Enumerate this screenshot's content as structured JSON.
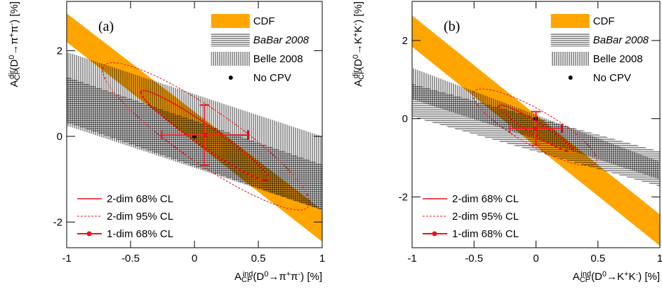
{
  "chart_data": [
    {
      "type": "band",
      "panel_label": "(a)",
      "xlabel": [
        {
          "text": "A"
        },
        {
          "text": "CP",
          "pos": "sub"
        },
        {
          "text": "ind",
          "pos": "sup"
        },
        {
          "text": "(D"
        },
        {
          "text": "0",
          "pos": "sup"
        },
        {
          "text": "→π"
        },
        {
          "text": "+",
          "pos": "sup"
        },
        {
          "text": "π"
        },
        {
          "text": "-",
          "pos": "sup"
        },
        {
          "text": ") [%]"
        }
      ],
      "ylabel": [
        {
          "text": "A"
        },
        {
          "text": "CP",
          "pos": "sub"
        },
        {
          "text": "dir",
          "pos": "sup"
        },
        {
          "text": "(D"
        },
        {
          "text": "0",
          "pos": "sup"
        },
        {
          "text": "→π"
        },
        {
          "text": "+",
          "pos": "sup"
        },
        {
          "text": "π"
        },
        {
          "text": "-",
          "pos": "sup"
        },
        {
          "text": ") [%]"
        }
      ],
      "xlim": [
        -1,
        1
      ],
      "ylim": [
        -2.6,
        3.15
      ],
      "xticks": [
        -1,
        -0.5,
        0,
        0.5,
        1
      ],
      "yticks": [
        -2,
        0,
        2
      ],
      "bands": [
        {
          "name": "CDF",
          "fill": "solid",
          "color": "#ffa500",
          "x": [
            -1,
            1
          ],
          "lower": [
            2.2,
            -2.46
          ],
          "upper": [
            2.87,
            -1.72
          ]
        },
        {
          "name": "BaBar 2008",
          "fill": "hlines",
          "color": "#000000",
          "x": [
            -1,
            1
          ],
          "lower": [
            0.33,
            -1.72
          ],
          "upper": [
            1.39,
            -0.66
          ]
        },
        {
          "name": "Belle 2008",
          "fill": "vlines",
          "color": "#000000",
          "x": [
            -1,
            1
          ],
          "lower": [
            0.25,
            -1.72
          ],
          "upper": [
            1.97,
            0
          ]
        }
      ],
      "reference": {
        "name": "No CPV",
        "x": 0,
        "y": 0,
        "color": "#000000"
      },
      "contours": [
        {
          "name": "2-dim 68% CL",
          "style": "solid",
          "color": "#e8141c",
          "cx": 0.08,
          "cy": 0.02,
          "sx": 0.5,
          "sy": 1.05,
          "rho": -0.96
        },
        {
          "name": "2-dim 95% CL",
          "style": "dashed",
          "color": "#e8141c",
          "cx": 0.09,
          "cy": 0,
          "sx": 0.81,
          "sy": 1.72,
          "rho": -0.9
        }
      ],
      "measurement": {
        "name": "1-dim 68% CL",
        "color": "#e8141c",
        "x": 0.08,
        "y": 0.03,
        "xerr": 0.34,
        "yerr": 0.7
      }
    },
    {
      "type": "band",
      "panel_label": "(b)",
      "xlabel": [
        {
          "text": "A"
        },
        {
          "text": "CP",
          "pos": "sub"
        },
        {
          "text": "ind",
          "pos": "sup"
        },
        {
          "text": "(D"
        },
        {
          "text": "0",
          "pos": "sup"
        },
        {
          "text": "→K"
        },
        {
          "text": "+",
          "pos": "sup"
        },
        {
          "text": "K"
        },
        {
          "text": "-",
          "pos": "sup"
        },
        {
          "text": ") [%]"
        }
      ],
      "ylabel": [
        {
          "text": "A"
        },
        {
          "text": "CP",
          "pos": "sub"
        },
        {
          "text": "dir",
          "pos": "sup"
        },
        {
          "text": "(D"
        },
        {
          "text": "0",
          "pos": "sup"
        },
        {
          "text": "→K"
        },
        {
          "text": "+",
          "pos": "sup"
        },
        {
          "text": "K"
        },
        {
          "text": "-",
          "pos": "sup"
        },
        {
          "text": ") [%]"
        }
      ],
      "xlim": [
        -1,
        1
      ],
      "ylim": [
        -3.3,
        3
      ],
      "xticks": [
        -1,
        -0.5,
        0,
        0.5,
        1
      ],
      "yticks": [
        -2,
        0,
        2
      ],
      "bands": [
        {
          "name": "CDF",
          "fill": "solid",
          "color": "#ffa500",
          "x": [
            -1,
            1
          ],
          "lower": [
            1.84,
            -3.25
          ],
          "upper": [
            2.64,
            -2.45
          ]
        },
        {
          "name": "BaBar 2008",
          "fill": "hlines",
          "color": "#000000",
          "x": [
            -1,
            1
          ],
          "lower": [
            0.05,
            -1.73
          ],
          "upper": [
            0.89,
            -0.84
          ]
        },
        {
          "name": "Belle 2008",
          "fill": "vlines",
          "color": "#000000",
          "x": [
            -1,
            1
          ],
          "lower": [
            0.5,
            -1.55
          ],
          "upper": [
            1.3,
            -1.1
          ]
        }
      ],
      "reference": {
        "name": "No CPV",
        "x": 0,
        "y": 0,
        "color": "#000000"
      },
      "contours": [
        {
          "name": "2-dim 68% CL",
          "style": "solid",
          "color": "#e8141c",
          "cx": 0,
          "cy": -0.25,
          "sx": 0.3,
          "sy": 0.6,
          "rho": -0.95
        },
        {
          "name": "2-dim 95% CL",
          "style": "dashed",
          "color": "#e8141c",
          "cx": -0.01,
          "cy": -0.22,
          "sx": 0.5,
          "sy": 0.98,
          "rho": -0.85
        }
      ],
      "measurement": {
        "name": "1-dim 68% CL",
        "color": "#e8141c",
        "x": 0,
        "y": -0.25,
        "xerr": 0.21,
        "yerr": 0.43
      }
    }
  ]
}
